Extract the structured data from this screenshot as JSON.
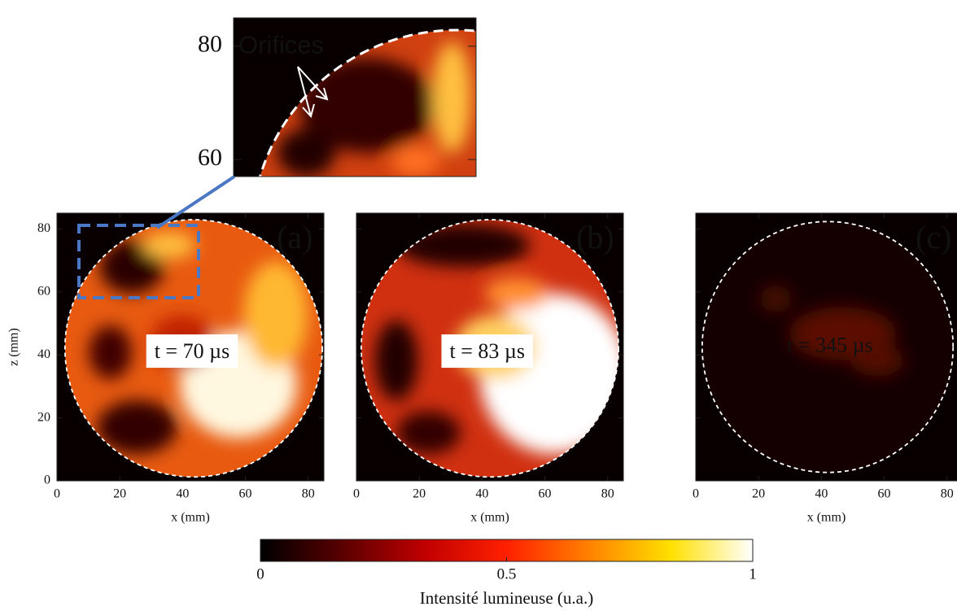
{
  "chart_data": [
    {
      "type": "image",
      "xlim": [
        6,
        46
      ],
      "ylim": [
        57,
        85
      ],
      "yticks": [
        60,
        80
      ],
      "annotation": "Orifices"
    },
    {
      "type": "image",
      "panel_label": "(a)",
      "annotation": "t = 70 µs",
      "xlabel": "x (mm)",
      "ylabel": "z (mm)",
      "xlim": [
        0,
        85
      ],
      "ylim": [
        0,
        85
      ],
      "xticks": [
        0,
        20,
        40,
        60,
        80
      ],
      "yticks": [
        0,
        20,
        40,
        60,
        80
      ],
      "ytick_labels": true
    },
    {
      "type": "image",
      "panel_label": "(b)",
      "annotation": "t = 83 µs",
      "xlabel": "x (mm)",
      "xlim": [
        0,
        85
      ],
      "ylim": [
        0,
        85
      ],
      "xticks": [
        0,
        20,
        40,
        60,
        80
      ],
      "yticks": [
        0,
        20,
        40,
        60,
        80
      ],
      "ytick_labels": false
    },
    {
      "type": "image",
      "panel_label": "(c)",
      "annotation": "t = 345 µs",
      "xlabel": "x (mm)",
      "xlim": [
        0,
        85
      ],
      "ylim": [
        0,
        85
      ],
      "xticks": [
        0,
        20,
        40,
        60,
        80
      ],
      "yticks": [
        0,
        20,
        40,
        60,
        80
      ],
      "ytick_labels": false
    },
    {
      "type": "colorbar",
      "label": "Intensité lumineuse (u.a.)",
      "lim": [
        0,
        1
      ],
      "ticks": [
        0,
        0.5,
        1
      ],
      "colors": [
        "#000000",
        "#5a0000",
        "#c00000",
        "#ff2000",
        "#ff8000",
        "#ffe000",
        "#ffffff"
      ]
    }
  ]
}
